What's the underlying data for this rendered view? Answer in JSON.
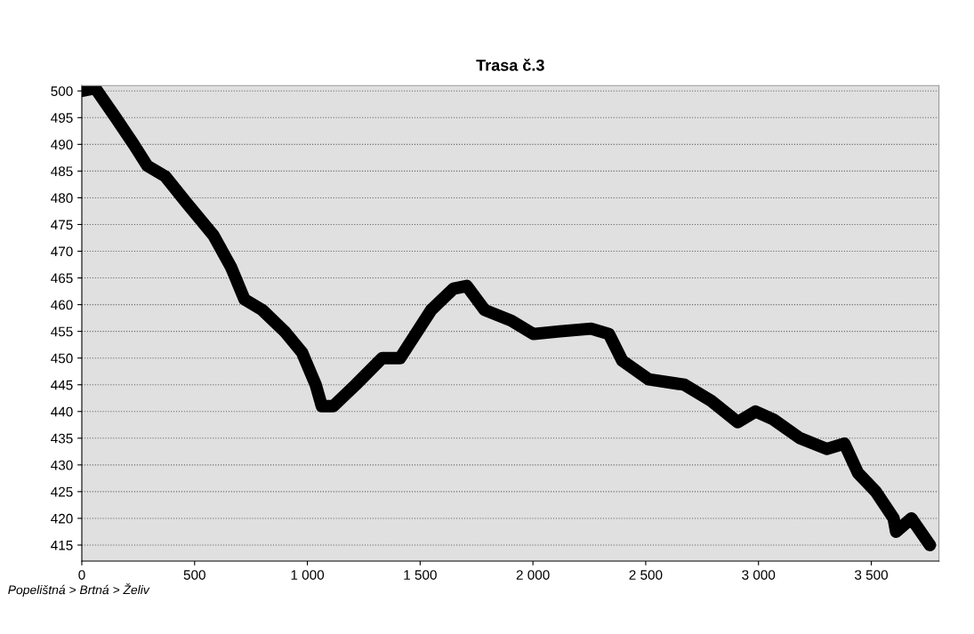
{
  "chart_data": {
    "type": "line",
    "title": "Trasa č.3",
    "x": [
      0,
      60,
      150,
      230,
      290,
      370,
      465,
      583,
      662,
      721,
      800,
      899,
      977,
      1037,
      1064,
      1115,
      1214,
      1332,
      1411,
      1549,
      1648,
      1707,
      1786,
      1904,
      2002,
      2120,
      2258,
      2337,
      2396,
      2514,
      2672,
      2790,
      2908,
      2987,
      3066,
      3184,
      3303,
      3381,
      3441,
      3520,
      3599,
      3610,
      3678,
      3760
    ],
    "series": [
      {
        "color": "#000000",
        "values": [
          500,
          500.5,
          495,
          490,
          486,
          484,
          479,
          473,
          467,
          461,
          459,
          455,
          451,
          445,
          441,
          441,
          445,
          450,
          450,
          459,
          463,
          463.5,
          459,
          457,
          454.5,
          455,
          455.5,
          454.5,
          449.5,
          446,
          445,
          442,
          438,
          440,
          438.5,
          435,
          433,
          434,
          428.5,
          425,
          420,
          417.5,
          420,
          415
        ]
      }
    ],
    "xlim": [
      0,
      3800
    ],
    "ylim": [
      412,
      501
    ],
    "xticks": [
      0,
      500,
      {
        "value": 1000,
        "label": "1 000"
      },
      {
        "value": 1500,
        "label": "1 500"
      },
      {
        "value": 2000,
        "label": "2 000"
      },
      {
        "value": 2500,
        "label": "2 500"
      },
      {
        "value": 3000,
        "label": "3 000"
      },
      {
        "value": 3500,
        "label": "3 500"
      }
    ],
    "yticks": [
      415,
      420,
      425,
      430,
      435,
      440,
      445,
      450,
      455,
      460,
      465,
      470,
      475,
      480,
      485,
      490,
      495,
      500
    ],
    "grid": "y",
    "marker": "none",
    "line_style": "solid",
    "annotations": [
      "Popelištná > Brtná > Želiv"
    ]
  }
}
